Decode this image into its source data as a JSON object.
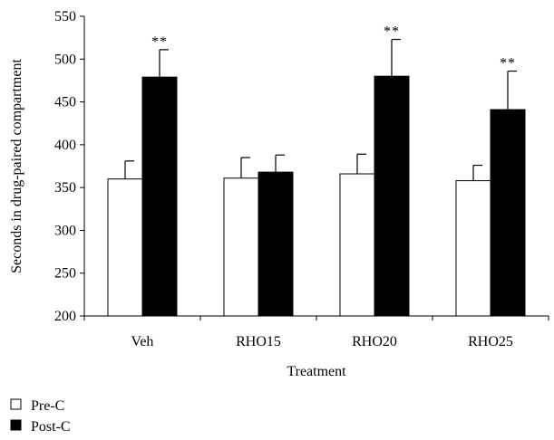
{
  "chart_data": {
    "type": "bar",
    "xlabel": "Treatment",
    "ylabel": "Seconds in drug-paired compartment",
    "categories": [
      "Veh",
      "RHO15",
      "RHO20",
      "RHO25"
    ],
    "ylim": [
      200,
      550
    ],
    "yticks": [
      200,
      250,
      300,
      350,
      400,
      450,
      500,
      550
    ],
    "series": [
      {
        "name": "Pre-C",
        "color": "#ffffff",
        "values": [
          360,
          361,
          366,
          358
        ],
        "errors": [
          21,
          24,
          23,
          18
        ]
      },
      {
        "name": "Post-C",
        "color": "#000000",
        "values": [
          479,
          368,
          480,
          441
        ],
        "errors": [
          32,
          20,
          43,
          45
        ]
      }
    ],
    "annotations": [
      {
        "category": "Veh",
        "series": "Post-C",
        "text": "**"
      },
      {
        "category": "RHO20",
        "series": "Post-C",
        "text": "**"
      },
      {
        "category": "RHO25",
        "series": "Post-C",
        "text": "**"
      }
    ],
    "grid": false,
    "legend_position": "bottom-left"
  }
}
